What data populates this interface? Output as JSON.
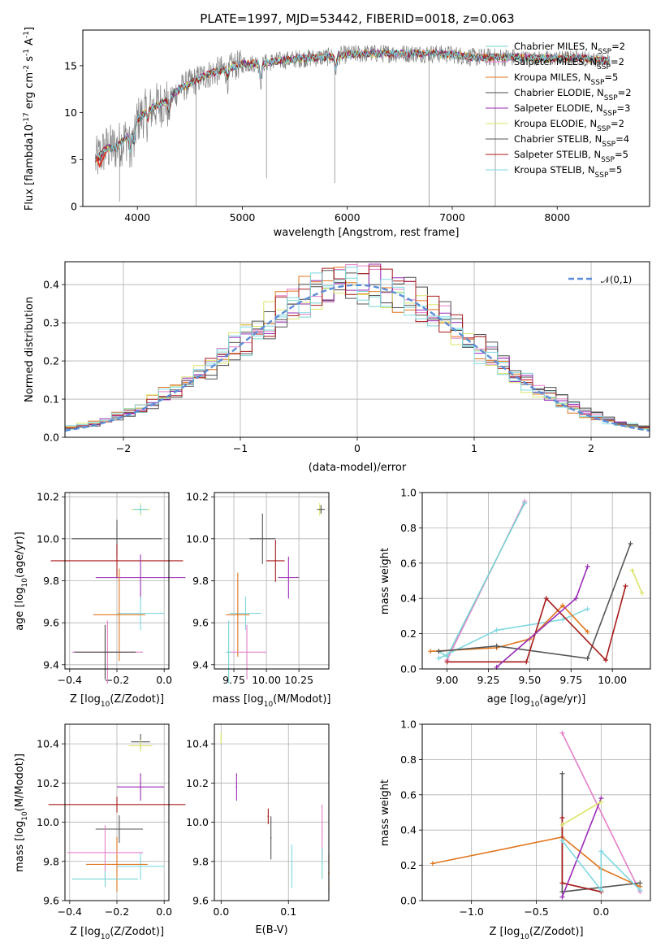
{
  "title": "PLATE=1997, MJD=53442, FIBERID=0018, z=0.063",
  "colors": {
    "Chabrier MILES": "#79d5d3",
    "Salpeter MILES": "#e47fc9",
    "Kroupa MILES": "#e0761e",
    "Chabrier ELODIE": "#4a4a4a",
    "Salpeter ELODIE": "#9a2bb5",
    "Kroupa ELODIE": "#dbe46a",
    "Chabrier STELIB": "#555555",
    "Salpeter STELIB": "#a81a1a",
    "Kroupa STELIB": "#7fd8e2",
    "spectrum": "#808080",
    "gauss": "#5b8dd8",
    "mixred": "#e0301e"
  },
  "chart_data": [
    {
      "type": "line",
      "xlabel": "wavelength [Angstrom, rest frame]",
      "ylabel": "Flux [f$_\\lambda$10$^{-17}$ erg cm$^{-2}$ s$^{-1}$ A$^{-1}$]",
      "xlim": [
        3480,
        8880
      ],
      "ylim": [
        0,
        18.8
      ],
      "xticks": [
        "4000",
        "5000",
        "6000",
        "7000",
        "8000"
      ],
      "yticks": [
        "0",
        "5",
        "10",
        "15"
      ],
      "legend_position": "right",
      "series": [
        {
          "name": "Chabrier MILES, N$_{SSP}$=2"
        },
        {
          "name": "Salpeter MILES, N$_{SSP}$=2"
        },
        {
          "name": "Kroupa MILES, N$_{SSP}$=5"
        },
        {
          "name": "Chabrier ELODIE, N$_{SSP}$=2"
        },
        {
          "name": "Salpeter ELODIE, N$_{SSP}$=3"
        },
        {
          "name": "Kroupa ELODIE, N$_{SSP}$=2"
        },
        {
          "name": "Chabrier STELIB, N$_{SSP}$=4"
        },
        {
          "name": "Salpeter STELIB, N$_{SSP}$=5"
        },
        {
          "name": "Kroupa STELIB, N$_{SSP}$=5"
        }
      ],
      "continuum": {
        "x": [
          3600,
          3700,
          3800,
          3900,
          4000,
          4100,
          4200,
          4300,
          4400,
          4500,
          4600,
          4700,
          4800,
          4900,
          5000,
          5200,
          5400,
          5600,
          5800,
          6000,
          6200,
          6400,
          6600,
          6800,
          7000,
          7200,
          7400,
          7600,
          7800,
          8000,
          8200,
          8400,
          8500
        ],
        "y": [
          4.8,
          6.2,
          6.3,
          7.4,
          9.2,
          10.3,
          10.8,
          11.4,
          12.5,
          13.1,
          13.7,
          14.2,
          14.5,
          14.9,
          15.2,
          15.3,
          15.6,
          15.8,
          15.9,
          16.2,
          16.3,
          16.3,
          16.3,
          16.3,
          16.2,
          15.9,
          15.9,
          15.9,
          15.8,
          15.8,
          15.9,
          15.6,
          15.5
        ]
      }
    },
    {
      "type": "histogram",
      "xlabel": "(data-model)/error",
      "ylabel": "Normed distribution",
      "xlim": [
        -2.5,
        2.5
      ],
      "ylim": [
        0,
        0.46
      ],
      "xticks": [
        "−2",
        "−1",
        "0",
        "1",
        "2"
      ],
      "yticks": [
        "0.0",
        "0.1",
        "0.2",
        "0.3",
        "0.4"
      ],
      "legend_position": "top-right",
      "gauss_label": "$\\mathcal{N}(0,1)$"
    },
    {
      "type": "scatter",
      "xlabel": "Z [log$_{10}$($Z/Z_\\odot$)]",
      "ylabel": "age  [log$_{10}$($age/yr$)]",
      "xlim": [
        -0.42,
        0.02
      ],
      "ylim": [
        9.38,
        10.22
      ],
      "xticks": [
        "−0.4",
        "−0.2",
        "0.0"
      ],
      "yticks": [
        "9.4",
        "9.6",
        "9.8",
        "10.0",
        "10.2"
      ],
      "points": [
        {
          "x": -0.1,
          "y": 10.14
        },
        {
          "x": -0.1,
          "y": 10.14
        },
        {
          "x": -0.2,
          "y": 10.0
        },
        {
          "x": -0.2,
          "y": 9.895
        },
        {
          "x": -0.1,
          "y": 9.815
        },
        {
          "x": -0.1,
          "y": 9.645
        },
        {
          "x": -0.19,
          "y": 9.638
        },
        {
          "x": -0.24,
          "y": 9.46
        },
        {
          "x": -0.25,
          "y": 9.46
        }
      ]
    },
    {
      "type": "scatter",
      "xlabel": "mass [log$_{10}$($M/M_\\odot$)]",
      "ylabel": "",
      "xlim": [
        9.6,
        10.48
      ],
      "ylim": [
        9.38,
        10.22
      ],
      "xticks": [
        "9.75",
        "10.00",
        "10.25"
      ],
      "yticks": [
        "9.4",
        "9.6",
        "9.8",
        "10.0",
        "10.2"
      ]
    },
    {
      "type": "line",
      "xlabel": "age  [log$_{10}$($age/yr$)]",
      "ylabel": "mass weight",
      "xlim": [
        8.85,
        10.23
      ],
      "ylim": [
        0,
        1
      ],
      "xticks": [
        "9.00",
        "9.25",
        "9.50",
        "9.75",
        "10.00"
      ],
      "yticks": [
        "0.0",
        "0.2",
        "0.4",
        "0.6",
        "0.8",
        "1.0"
      ]
    },
    {
      "type": "scatter",
      "xlabel": "Z [log$_{10}$($Z/Z_\\odot$)]",
      "ylabel": "mass [log$_{10}$($M/M_\\odot$)]",
      "xlim": [
        -0.42,
        0.02
      ],
      "ylim": [
        9.6,
        10.5
      ],
      "xticks": [
        "−0.4",
        "−0.2",
        "0.0"
      ],
      "yticks": [
        "9.6",
        "9.8",
        "10.0",
        "10.2",
        "10.4"
      ]
    },
    {
      "type": "scatter",
      "xlabel": "E(B-V)",
      "ylabel": "",
      "xlim": [
        -0.01,
        0.16
      ],
      "ylim": [
        9.6,
        10.5
      ],
      "xticks": [
        "0.0",
        "0.1"
      ],
      "yticks": [
        "9.6",
        "9.8",
        "10.0",
        "10.2",
        "10.4"
      ]
    },
    {
      "type": "line",
      "xlabel": "Z [log$_{10}$($Z/Z_\\odot$)]",
      "ylabel": "mass weight",
      "xlim": [
        -1.38,
        0.38
      ],
      "ylim": [
        0,
        1
      ],
      "xticks": [
        "−1.0",
        "−0.5",
        "0.0"
      ],
      "yticks": [
        "0.0",
        "0.2",
        "0.4",
        "0.6",
        "0.8",
        "1.0"
      ]
    }
  ]
}
